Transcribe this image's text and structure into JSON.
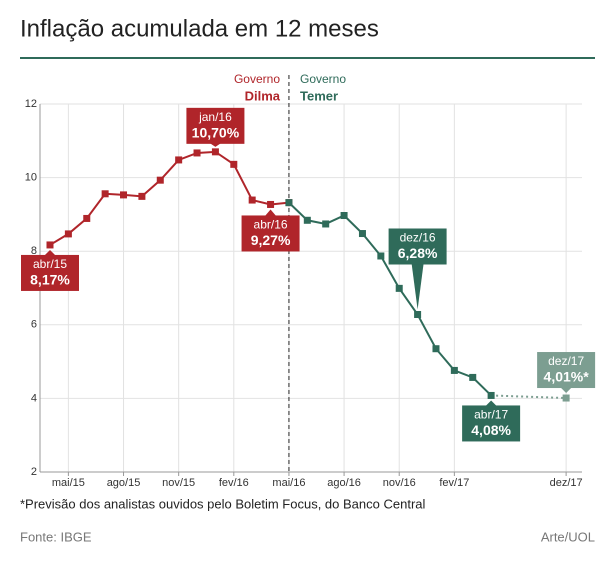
{
  "chart_data": {
    "type": "line",
    "title": "Inflação acumulada em 12 meses",
    "categories": [
      null,
      "mai/15",
      null,
      null,
      "ago/15",
      null,
      null,
      "nov/15",
      null,
      null,
      "fev/16",
      null,
      null,
      "mai/16",
      null,
      null,
      "ago/16",
      null,
      null,
      "nov/16",
      null,
      null,
      "fev/17",
      null,
      null,
      "dez/17"
    ],
    "series": [
      {
        "name": "Dilma",
        "color": "#b0252a",
        "values": [
          8.17,
          8.47,
          8.89,
          9.56,
          9.53,
          9.49,
          9.93,
          10.48,
          10.67,
          10.7,
          10.36,
          9.39,
          9.27,
          9.32,
          null,
          null,
          null,
          null,
          null,
          null,
          null,
          null,
          null,
          null,
          null,
          null
        ],
        "point_labels": [
          "abr/15",
          null,
          null,
          null,
          null,
          null,
          null,
          null,
          null,
          "jan/16",
          null,
          null,
          "abr/16",
          null,
          null,
          null,
          null,
          null,
          null,
          null,
          null,
          null,
          null,
          null,
          null,
          null
        ],
        "value_labels": [
          "8,17%",
          null,
          null,
          null,
          null,
          null,
          null,
          null,
          null,
          "10,70%",
          null,
          null,
          "9,27%",
          null,
          null,
          null,
          null,
          null,
          null,
          null,
          null,
          null,
          null,
          null,
          null,
          null
        ]
      },
      {
        "name": "Temer",
        "color": "#2f6b5a",
        "values": [
          null,
          null,
          null,
          null,
          null,
          null,
          null,
          null,
          null,
          null,
          null,
          null,
          null,
          9.32,
          8.84,
          8.74,
          8.97,
          8.48,
          7.87,
          6.99,
          6.28,
          5.35,
          4.76,
          4.57,
          4.08,
          null
        ],
        "point_labels": [
          null,
          null,
          null,
          null,
          null,
          null,
          null,
          null,
          null,
          null,
          null,
          null,
          null,
          null,
          null,
          null,
          null,
          null,
          null,
          null,
          "dez/16",
          null,
          null,
          null,
          "abr/17",
          null
        ],
        "value_labels": [
          null,
          null,
          null,
          null,
          null,
          null,
          null,
          null,
          null,
          null,
          null,
          null,
          null,
          null,
          null,
          null,
          null,
          null,
          null,
          null,
          "6,28%",
          null,
          null,
          null,
          "4,08%",
          null
        ]
      },
      {
        "color": "#7c9e91",
        "dashed": true,
        "values": [
          null,
          null,
          null,
          null,
          null,
          null,
          null,
          null,
          null,
          null,
          null,
          null,
          null,
          null,
          null,
          null,
          null,
          null,
          null,
          null,
          null,
          null,
          null,
          null,
          4.08,
          4.01
        ],
        "point_labels": [
          null,
          null,
          null,
          null,
          null,
          null,
          null,
          null,
          null,
          null,
          null,
          null,
          null,
          null,
          null,
          null,
          null,
          null,
          null,
          null,
          null,
          null,
          null,
          null,
          null,
          "dez/17"
        ],
        "value_labels": [
          null,
          null,
          null,
          null,
          null,
          null,
          null,
          null,
          null,
          null,
          null,
          null,
          null,
          null,
          null,
          null,
          null,
          null,
          null,
          null,
          null,
          null,
          null,
          null,
          null,
          "4,01%*"
        ]
      }
    ],
    "ylim": [
      2,
      12
    ],
    "yticks": [
      2,
      4,
      6,
      8,
      10,
      12
    ],
    "grid": true,
    "divider": {
      "left_caption": "Governo",
      "right_caption": "Governo"
    },
    "footnote": "*Previsão dos analistas ouvidos pelo Boletim Focus, do Banco Central",
    "source": "Fonte: IBGE",
    "credit": "Arte/UOL"
  }
}
